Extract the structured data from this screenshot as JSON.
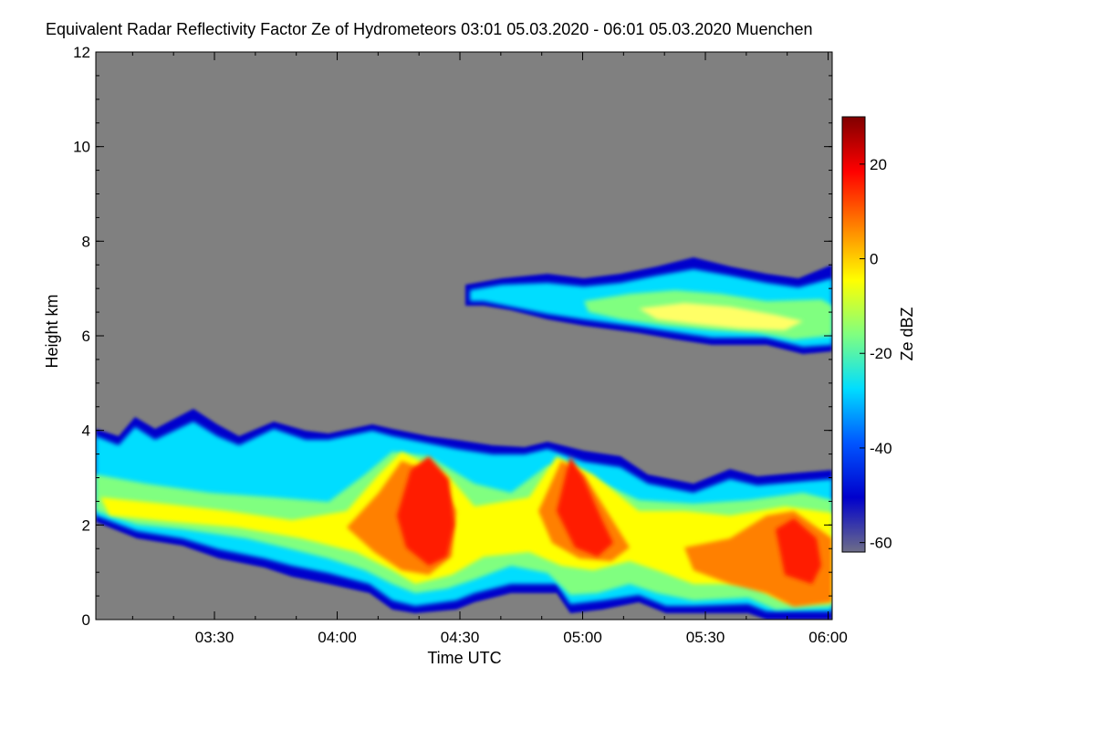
{
  "chart_data": {
    "type": "heatmap",
    "title": "Equivalent Radar Reflectivity Factor Ze of Hydrometeors   03:01 05.03.2020 - 06:01 05.03.2020 Muenchen",
    "xlabel": "Time UTC",
    "ylabel": "Height km",
    "colorbar_label": "Ze dBZ",
    "xlim": [
      "03:01",
      "06:01"
    ],
    "ylim": [
      0,
      12
    ],
    "x_ticks": [
      "03:30",
      "04:00",
      "04:30",
      "05:00",
      "05:30",
      "06:00"
    ],
    "y_ticks": [
      "0",
      "2",
      "4",
      "6",
      "8",
      "10",
      "12"
    ],
    "colorbar_range": [
      -62,
      30
    ],
    "colorbar_ticks": [
      "20",
      "0",
      "-20",
      "-40",
      "-60"
    ],
    "background_color": "#808080",
    "colormap": [
      "#6e6e88",
      "#0000cc",
      "#0055ff",
      "#00ddff",
      "#80ff80",
      "#ffff00",
      "#ff8000",
      "#ff0000",
      "#800000"
    ],
    "features": [
      {
        "name": "low cloud/precipitation layer",
        "time_range": [
          "03:01",
          "06:01"
        ],
        "height_km": [
          0,
          4.4
        ],
        "max_dbz": 25
      },
      {
        "name": "upper cloud layer",
        "time_range": [
          "04:31",
          "06:01"
        ],
        "height_km": [
          5.5,
          8.2
        ],
        "max_dbz": -5
      },
      {
        "name": "precipitation core",
        "time_range": [
          "04:15",
          "04:30"
        ],
        "height_km": [
          0.8,
          3.5
        ],
        "max_dbz": 25
      },
      {
        "name": "precipitation core",
        "time_range": [
          "04:55",
          "05:05"
        ],
        "height_km": [
          1.2,
          3.5
        ],
        "max_dbz": 20
      },
      {
        "name": "precipitation core",
        "time_range": [
          "05:45",
          "06:01"
        ],
        "height_km": [
          0.2,
          2.5
        ],
        "max_dbz": 15
      }
    ]
  }
}
